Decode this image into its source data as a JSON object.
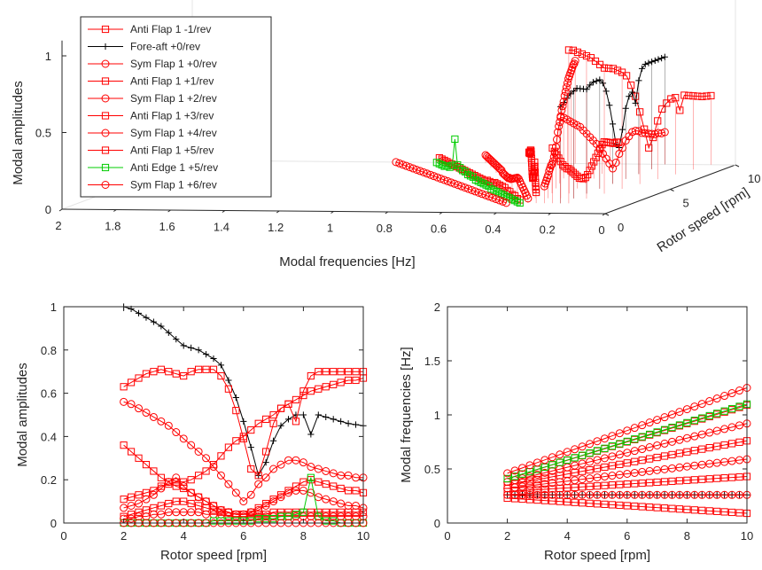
{
  "chart_data": [
    {
      "type": "line3d",
      "xlabel": "Modal frequencies [Hz]",
      "ylabel": "Rotor speed [rpm]",
      "zlabel": "Modal amplitudes",
      "xlim": [
        0,
        2
      ],
      "ylim": [
        0,
        10
      ],
      "zlim": [
        0,
        1
      ],
      "xticks": [
        "2",
        "1.8",
        "1.6",
        "1.4",
        "1.2",
        "1",
        "0.8",
        "0.6",
        "0.4",
        "0.2",
        "0"
      ],
      "yticks": [
        "0",
        "5",
        "10"
      ],
      "zticks": [
        "0",
        "0.5",
        "1"
      ],
      "grid": "off",
      "legend_position": "top-left",
      "legend": [
        {
          "label": "Anti Flap 1 -1/rev",
          "color": "#ff0000",
          "marker": "square"
        },
        {
          "label": "Fore-aft +0/rev",
          "color": "#000000",
          "marker": "plus"
        },
        {
          "label": "Sym Flap 1 +0/rev",
          "color": "#ff0000",
          "marker": "circle"
        },
        {
          "label": "Anti Flap 1 +1/rev",
          "color": "#ff0000",
          "marker": "square"
        },
        {
          "label": "Sym Flap 1 +2/rev",
          "color": "#ff0000",
          "marker": "circle"
        },
        {
          "label": "Anti Flap 1 +3/rev",
          "color": "#ff0000",
          "marker": "square"
        },
        {
          "label": "Sym Flap 1 +4/rev",
          "color": "#ff0000",
          "marker": "circle"
        },
        {
          "label": "Anti Flap 1 +5/rev",
          "color": "#ff0000",
          "marker": "square"
        },
        {
          "label": "Anti Edge 1 +5/rev",
          "color": "#00cc00",
          "marker": "square"
        },
        {
          "label": "Sym Flap 1 +6/rev",
          "color": "#ff0000",
          "marker": "circle"
        }
      ]
    },
    {
      "type": "line",
      "xlabel": "Rotor speed [rpm]",
      "ylabel": "Modal amplitudes",
      "xlim": [
        0,
        10
      ],
      "ylim": [
        0,
        1
      ],
      "xticks": [
        "0",
        "2",
        "4",
        "6",
        "8",
        "10"
      ],
      "yticks": [
        "0",
        "0.2",
        "0.4",
        "0.6",
        "0.8",
        "1"
      ],
      "x": [
        2,
        2.25,
        2.5,
        2.75,
        3,
        3.25,
        3.5,
        3.75,
        4,
        4.25,
        4.5,
        4.75,
        5,
        5.25,
        5.5,
        5.75,
        6,
        6.25,
        6.5,
        6.75,
        7,
        7.25,
        7.5,
        7.75,
        8,
        8.25,
        8.5,
        8.75,
        9,
        9.25,
        9.5,
        9.75,
        10
      ],
      "series": [
        {
          "color": "#000000",
          "marker": "plus",
          "values": [
            1.0,
            0.99,
            0.97,
            0.95,
            0.93,
            0.91,
            0.88,
            0.85,
            0.82,
            0.81,
            0.8,
            0.78,
            0.76,
            0.73,
            0.66,
            0.58,
            0.47,
            0.35,
            0.22,
            0.28,
            0.38,
            0.45,
            0.48,
            0.5,
            0.5,
            0.41,
            0.5,
            0.49,
            0.48,
            0.47,
            0.46,
            0.455,
            0.45
          ]
        },
        {
          "color": "#ff0000",
          "marker": "square",
          "values": [
            0.63,
            0.65,
            0.67,
            0.69,
            0.7,
            0.71,
            0.7,
            0.69,
            0.68,
            0.7,
            0.71,
            0.71,
            0.71,
            0.68,
            0.62,
            0.52,
            0.39,
            0.25,
            0.22,
            0.33,
            0.46,
            0.53,
            0.55,
            0.47,
            0.61,
            0.68,
            0.7,
            0.7,
            0.7,
            0.7,
            0.7,
            0.7,
            0.7
          ]
        },
        {
          "color": "#ff0000",
          "marker": "circle",
          "values": [
            0.56,
            0.55,
            0.53,
            0.51,
            0.49,
            0.47,
            0.45,
            0.42,
            0.39,
            0.36,
            0.33,
            0.3,
            0.26,
            0.22,
            0.18,
            0.14,
            0.1,
            0.13,
            0.18,
            0.21,
            0.25,
            0.27,
            0.29,
            0.29,
            0.28,
            0.26,
            0.25,
            0.24,
            0.23,
            0.22,
            0.22,
            0.21,
            0.21
          ]
        },
        {
          "color": "#ff0000",
          "marker": "square",
          "values": [
            0.36,
            0.33,
            0.3,
            0.27,
            0.24,
            0.21,
            0.19,
            0.17,
            0.16,
            0.14,
            0.12,
            0.1,
            0.08,
            0.06,
            0.05,
            0.04,
            0.04,
            0.05,
            0.07,
            0.09,
            0.11,
            0.13,
            0.15,
            0.17,
            0.19,
            0.2,
            0.19,
            0.18,
            0.17,
            0.16,
            0.15,
            0.15,
            0.14
          ]
        },
        {
          "color": "#ff0000",
          "marker": "square",
          "values": [
            0.11,
            0.12,
            0.13,
            0.14,
            0.15,
            0.17,
            0.18,
            0.19,
            0.19,
            0.2,
            0.22,
            0.24,
            0.27,
            0.31,
            0.35,
            0.38,
            0.4,
            0.43,
            0.46,
            0.48,
            0.5,
            0.53,
            0.55,
            0.57,
            0.59,
            0.61,
            0.62,
            0.63,
            0.64,
            0.65,
            0.66,
            0.66,
            0.67
          ]
        },
        {
          "color": "#ff0000",
          "marker": "circle",
          "values": [
            0.07,
            0.08,
            0.09,
            0.11,
            0.13,
            0.16,
            0.19,
            0.21,
            0.17,
            0.14,
            0.12,
            0.1,
            0.08,
            0.06,
            0.05,
            0.04,
            0.04,
            0.05,
            0.06,
            0.08,
            0.1,
            0.12,
            0.14,
            0.15,
            0.15,
            0.14,
            0.12,
            0.11,
            0.1,
            0.09,
            0.08,
            0.08,
            0.07
          ]
        },
        {
          "color": "#ff0000",
          "marker": "square",
          "values": [
            0.03,
            0.04,
            0.05,
            0.06,
            0.07,
            0.08,
            0.09,
            0.1,
            0.1,
            0.09,
            0.08,
            0.07,
            0.06,
            0.05,
            0.05,
            0.04,
            0.04,
            0.04,
            0.04,
            0.04,
            0.05,
            0.05,
            0.05,
            0.05,
            0.05,
            0.05,
            0.05,
            0.05,
            0.05,
            0.05,
            0.05,
            0.05,
            0.05
          ]
        },
        {
          "color": "#ff0000",
          "marker": "circle",
          "values": [
            0.02,
            0.02,
            0.03,
            0.03,
            0.04,
            0.04,
            0.05,
            0.05,
            0.05,
            0.05,
            0.05,
            0.04,
            0.04,
            0.04,
            0.03,
            0.03,
            0.03,
            0.03,
            0.03,
            0.03,
            0.03,
            0.03,
            0.03,
            0.03,
            0.03,
            0.03,
            0.03,
            0.03,
            0.03,
            0.03,
            0.03,
            0.03,
            0.03
          ]
        },
        {
          "color": "#00cc00",
          "marker": "square",
          "values": [
            0.0,
            0.0,
            0.0,
            0.0,
            0.0,
            0.0,
            0.0,
            0.0,
            0.0,
            0.0,
            0.0,
            0.0,
            0.01,
            0.01,
            0.01,
            0.01,
            0.01,
            0.01,
            0.02,
            0.02,
            0.02,
            0.03,
            0.03,
            0.04,
            0.05,
            0.21,
            0.03,
            0.01,
            0.01,
            0.0,
            0.0,
            0.0,
            0.0
          ]
        },
        {
          "color": "#ff0000",
          "marker": "circle",
          "values": [
            0.0,
            0.0,
            0.0,
            0.0,
            0.0,
            0.0,
            0.0,
            0.0,
            0.0,
            0.0,
            0.0,
            0.0,
            0.0,
            0.0,
            0.0,
            0.0,
            0.0,
            0.0,
            0.0,
            0.0,
            0.0,
            0.0,
            0.0,
            0.0,
            0.0,
            0.0,
            0.0,
            0.0,
            0.0,
            0.0,
            0.0,
            0.0,
            0.0
          ]
        }
      ]
    },
    {
      "type": "line",
      "xlabel": "Rotor speed [rpm]",
      "ylabel": "Modal frequencies [Hz]",
      "xlim": [
        0,
        10
      ],
      "ylim": [
        0,
        2
      ],
      "xticks": [
        "0",
        "2",
        "4",
        "6",
        "8",
        "10"
      ],
      "yticks": [
        "0",
        "0.5",
        "1",
        "1.5",
        "2"
      ],
      "x": [
        2,
        2.25,
        2.5,
        2.75,
        3,
        3.25,
        3.5,
        3.75,
        4,
        4.25,
        4.5,
        4.75,
        5,
        5.25,
        5.5,
        5.75,
        6,
        6.25,
        6.5,
        6.75,
        7,
        7.25,
        7.5,
        7.75,
        8,
        8.25,
        8.5,
        8.75,
        9,
        9.25,
        9.5,
        9.75,
        10
      ],
      "series": [
        {
          "color": "#ff0000",
          "marker": "square",
          "start": 0.23,
          "end": 0.09
        },
        {
          "color": "#000000",
          "marker": "plus",
          "start": 0.26,
          "end": 0.26
        },
        {
          "color": "#ff0000",
          "marker": "circle",
          "start": 0.26,
          "end": 0.26
        },
        {
          "color": "#ff0000",
          "marker": "square",
          "start": 0.29,
          "end": 0.43
        },
        {
          "color": "#ff0000",
          "marker": "circle",
          "start": 0.32,
          "end": 0.59
        },
        {
          "color": "#ff0000",
          "marker": "square",
          "start": 0.35,
          "end": 0.76
        },
        {
          "color": "#ff0000",
          "marker": "circle",
          "start": 0.38,
          "end": 0.92
        },
        {
          "color": "#ff0000",
          "marker": "square",
          "start": 0.41,
          "end": 1.09
        },
        {
          "color": "#00cc00",
          "marker": "square",
          "start": 0.41,
          "end": 1.1
        },
        {
          "color": "#ff0000",
          "marker": "circle",
          "start": 0.46,
          "end": 1.25
        }
      ]
    }
  ]
}
